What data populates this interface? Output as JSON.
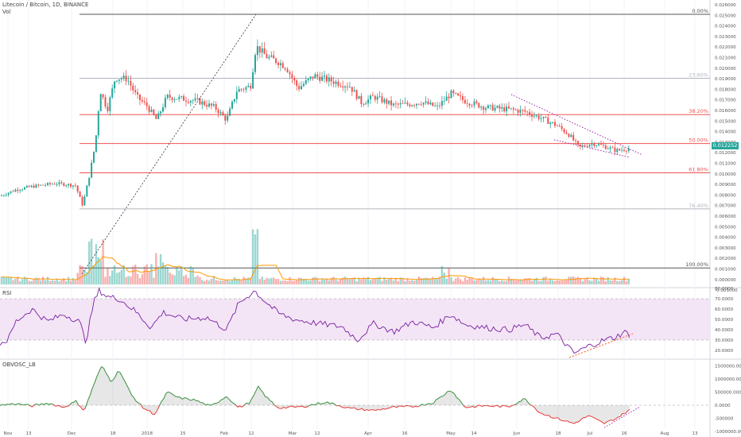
{
  "header": {
    "symbol": "Litecoin / Bitcoin, 1D, BINANCE",
    "vol_label": "Vol"
  },
  "panes": {
    "rsi_label": "RSI",
    "obv_label": "OBVOSC_LB"
  },
  "colors": {
    "up": "#26a69a",
    "down": "#ef5350",
    "fib_red": "#ef5350",
    "fib_gray": "#b2b5be",
    "rsi_line": "#7b1fa2",
    "rsi_band": "#f3e5f5",
    "vol_ma": "#ff9800",
    "channel": "#9c27b0",
    "price_badge": "#26a69a"
  },
  "last_price": "0.012252",
  "price_axis": [
    "0.026000",
    "0.025000",
    "0.024000",
    "0.023000",
    "0.022000",
    "0.021000",
    "0.020000",
    "0.019000",
    "0.018000",
    "0.017000",
    "0.016000",
    "0.015000",
    "0.014000",
    "0.013000",
    "0.012000",
    "0.011000",
    "0.010000",
    "0.009000",
    "0.008000",
    "0.007000",
    "0.006000",
    "0.005000",
    "0.004000",
    "0.003000",
    "0.002000",
    "0.001000",
    "0.000000",
    "-0.001000"
  ],
  "rsi_axis": [
    "80.0000",
    "70.0000",
    "60.0000",
    "50.0000",
    "40.0000",
    "30.0000",
    "20.0000"
  ],
  "obv_axis": [
    "1500000.0000",
    "1000000.0000",
    "500000.0000",
    "0.0000",
    "-500000",
    "-1000000.0000"
  ],
  "time_axis": [
    "Nov",
    "13",
    "Dec",
    "18",
    "2018",
    "15",
    "Feb",
    "12",
    "Mar",
    "12",
    "Apr",
    "16",
    "May",
    "14",
    "Jun",
    "18",
    "Jul",
    "16",
    "Aug",
    "13"
  ],
  "fib_levels": [
    {
      "label": "0.00%",
      "price": 0.025,
      "style": "dark"
    },
    {
      "label": "23.60%",
      "price": 0.01895,
      "style": "gray"
    },
    {
      "label": "38.20%",
      "price": 0.01551,
      "style": "red"
    },
    {
      "label": "50.00%",
      "price": 0.01277,
      "style": "red"
    },
    {
      "label": "61.80%",
      "price": 0.01,
      "style": "red"
    },
    {
      "label": "76.40%",
      "price": 0.00659,
      "style": "gray"
    },
    {
      "label": "100.00%",
      "price": 0.001,
      "style": "dark"
    }
  ]
}
